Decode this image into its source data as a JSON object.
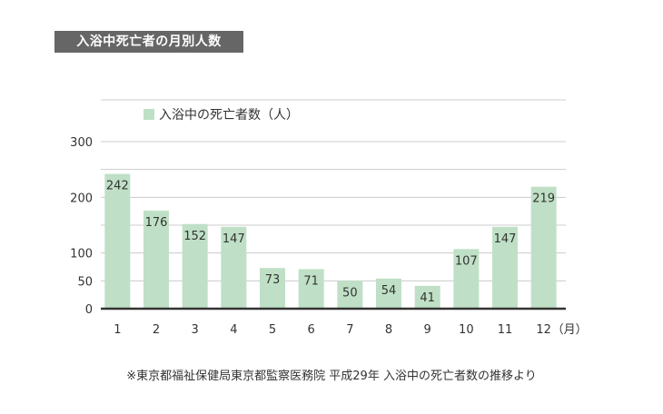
{
  "title": "入浴中死亡者の月別人数",
  "source_note": "※東京都福祉保健局東京都監察医務院 平成29年 入浴中の死亡者数の推移より",
  "colors": {
    "bar": "#bfe0c6",
    "grid": "#cccccc",
    "axis": "#333333",
    "text": "#333333",
    "banner": "#666666"
  },
  "chart_data": {
    "type": "bar",
    "categories": [
      "1",
      "2",
      "3",
      "4",
      "5",
      "6",
      "7",
      "8",
      "9",
      "10",
      "11",
      "12"
    ],
    "x_unit_suffix": "（月）",
    "series": [
      {
        "name": "入浴中の死亡者数（人）",
        "values": [
          242,
          176,
          152,
          147,
          73,
          71,
          50,
          54,
          41,
          107,
          147,
          219
        ]
      }
    ],
    "yticks": [
      0,
      50,
      100,
      150,
      200,
      250,
      300
    ],
    "ytick_labels": [
      "0",
      "50",
      "100",
      "",
      "200",
      "",
      "300"
    ],
    "ylim": [
      0,
      300
    ],
    "grid": true,
    "legend_position": "top-left",
    "data_labels": true
  }
}
